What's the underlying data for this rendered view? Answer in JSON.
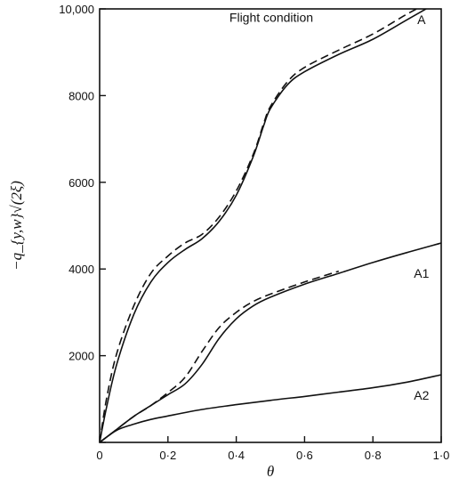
{
  "chart_data": {
    "type": "line",
    "xlabel": "θ",
    "ylabel": "−q_{y,w}√(2ξ)",
    "xlim": [
      0,
      1.0
    ],
    "ylim": [
      0,
      10000
    ],
    "x_ticks": [
      {
        "value": 0,
        "label": "0"
      },
      {
        "value": 0.2,
        "label": "0·2"
      },
      {
        "value": 0.4,
        "label": "0·4"
      },
      {
        "value": 0.6,
        "label": "0·6"
      },
      {
        "value": 0.8,
        "label": "0·8"
      },
      {
        "value": 1.0,
        "label": "1·0"
      }
    ],
    "y_ticks": [
      {
        "value": 0,
        "label": ""
      },
      {
        "value": 2000,
        "label": "2000"
      },
      {
        "value": 4000,
        "label": "4000"
      },
      {
        "value": 6000,
        "label": "6000"
      },
      {
        "value": 8000,
        "label": "8000"
      },
      {
        "value": 10000,
        "label": "10,000"
      }
    ],
    "grid": false,
    "annotations": [
      {
        "text": "Flight condition",
        "x": 0.38,
        "y": 9700
      },
      {
        "text": "A",
        "x": 0.93,
        "y": 9650
      },
      {
        "text": "A1",
        "x": 0.92,
        "y": 3800
      },
      {
        "text": "A2",
        "x": 0.92,
        "y": 990
      }
    ],
    "series": [
      {
        "style": "solid",
        "x": [
          0,
          0.02,
          0.05,
          0.1,
          0.15,
          0.2,
          0.25,
          0.3,
          0.35,
          0.4,
          0.45,
          0.48,
          0.5,
          0.55,
          0.6,
          0.7,
          0.8,
          0.9,
          1.0
        ],
        "values": [
          0,
          800,
          1800,
          2950,
          3700,
          4150,
          4450,
          4700,
          5100,
          5700,
          6600,
          7300,
          7700,
          8250,
          8550,
          8950,
          9300,
          9750,
          10200
        ]
      },
      {
        "style": "dashed",
        "x": [
          0,
          0.02,
          0.05,
          0.1,
          0.15,
          0.2,
          0.25,
          0.3,
          0.35,
          0.4,
          0.45,
          0.48,
          0.5,
          0.55,
          0.6,
          0.7,
          0.8,
          0.9,
          1.0
        ],
        "values": [
          0,
          1000,
          2050,
          3150,
          3900,
          4300,
          4600,
          4800,
          5200,
          5800,
          6650,
          7350,
          7750,
          8320,
          8650,
          9050,
          9420,
          9880,
          10300
        ]
      },
      {
        "style": "solid",
        "x": [
          0,
          0.05,
          0.1,
          0.15,
          0.2,
          0.25,
          0.3,
          0.35,
          0.4,
          0.45,
          0.5,
          0.6,
          0.7,
          0.8,
          0.9,
          1.0
        ],
        "values": [
          0,
          300,
          600,
          850,
          1100,
          1350,
          1800,
          2400,
          2850,
          3150,
          3350,
          3650,
          3900,
          4150,
          4380,
          4600
        ]
      },
      {
        "style": "dashed",
        "x": [
          0,
          0.05,
          0.1,
          0.15,
          0.2,
          0.25,
          0.3,
          0.35,
          0.4,
          0.45,
          0.5,
          0.6,
          0.7
        ],
        "values": [
          0,
          300,
          600,
          850,
          1150,
          1500,
          2100,
          2650,
          3000,
          3250,
          3420,
          3700,
          3950
        ]
      },
      {
        "style": "solid",
        "x": [
          0,
          0.05,
          0.1,
          0.15,
          0.2,
          0.3,
          0.4,
          0.5,
          0.6,
          0.7,
          0.8,
          0.9,
          1.0
        ],
        "values": [
          0,
          280,
          420,
          530,
          610,
          760,
          870,
          970,
          1060,
          1160,
          1260,
          1390,
          1560
        ]
      }
    ]
  }
}
